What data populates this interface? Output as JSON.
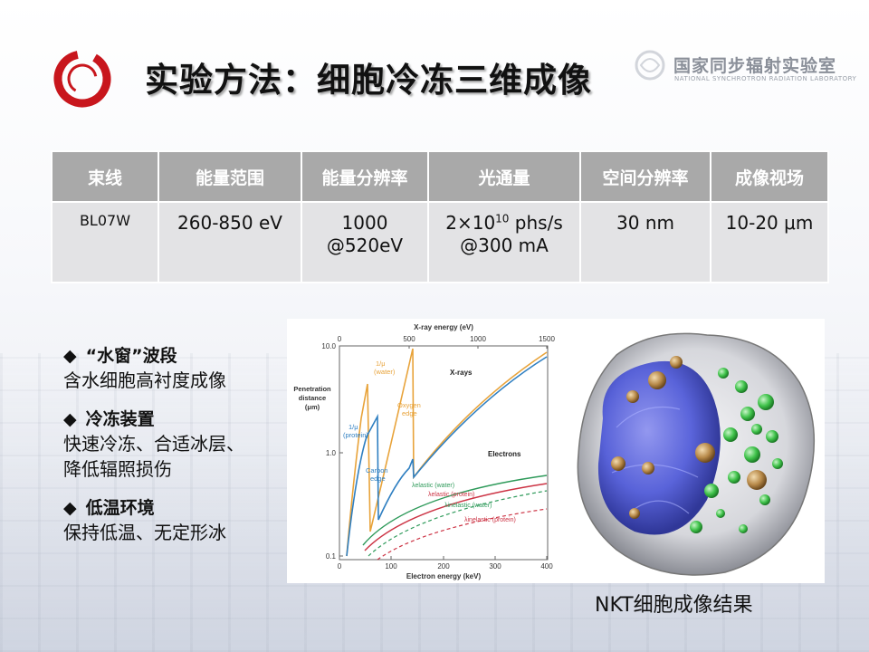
{
  "title": "实验方法：细胞冷冻三维成像",
  "lab": {
    "name": "国家同步辐射实验室",
    "name_en": "NATIONAL SYNCHROTRON RADIATION LABORATORY"
  },
  "table": {
    "headers": [
      "束线",
      "能量范围",
      "能量分辨率",
      "光通量",
      "空间分辨率",
      "成像视场"
    ],
    "row": {
      "beamline": "BL07W",
      "energy_range": "260-850 eV",
      "resolution_1": "1000",
      "resolution_2": "@520eV",
      "flux_base": "2×10",
      "flux_exp": "10",
      "flux_unit": " phs/s",
      "flux_2": "@300 mA",
      "spatial": "30 nm",
      "fov": "10-20 μm"
    }
  },
  "bullets": [
    {
      "head": "“水窗”波段",
      "text": [
        "含水细胞高衬度成像"
      ]
    },
    {
      "head": "冷冻装置",
      "text": [
        "快速冷冻、合适冰层、",
        "降低辐照损伤"
      ]
    },
    {
      "head": "低温环境",
      "text": [
        "保持低温、无定形冰"
      ]
    }
  ],
  "bullet_symbol": "◆",
  "plot": {
    "top_axis_label": "X-ray energy (eV)",
    "top_ticks": [
      "0",
      "500",
      "1000",
      "1500"
    ],
    "bottom_axis_label": "Electron energy (keV)",
    "bottom_ticks": [
      "0",
      "100",
      "200",
      "300",
      "400"
    ],
    "y_label_1": "Penetration",
    "y_label_2": "distance",
    "y_label_3": "(μm)",
    "y_ticks": [
      "10.0",
      "1.0",
      "0.1"
    ],
    "label_water_1": "1/μ",
    "label_water_2": "(water)",
    "label_protein_1": "1/μ",
    "label_protein_2": "(protein)",
    "label_oxygen_1": "Oxygen",
    "label_oxygen_2": "edge",
    "label_carbon_1": "Carbon",
    "label_carbon_2": "edge",
    "label_xrays": "X-rays",
    "label_electrons": "Electrons",
    "label_elastic_water": "λelastic (water)",
    "label_elastic_protein": "λelastic (protein)",
    "label_inelastic_water": "λinelastic (water)",
    "label_inelastic_protein": "λinelastic (protein)",
    "colors": {
      "water": "#e8a33a",
      "protein": "#2f7fc1",
      "green": "#2e9a5a",
      "red": "#cc3344"
    }
  },
  "caption": "NKT细胞成像结果"
}
